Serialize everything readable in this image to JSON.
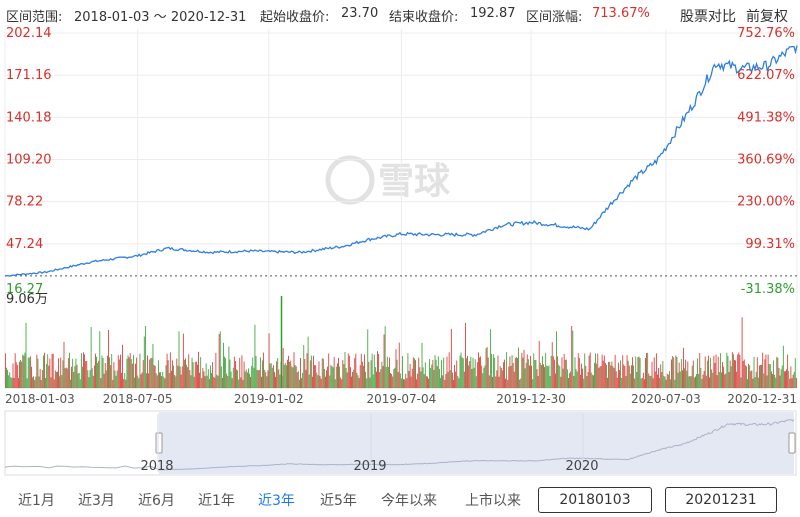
{
  "header": {
    "range_label": "区间范围:",
    "range_value": "2018-01-03 ～ 2020-12-31",
    "start_label": "起始收盘价:",
    "start_value": "23.70",
    "end_label": "结束收盘价:",
    "end_value": "192.87",
    "change_label": "区间涨幅:",
    "change_value": "713.67%",
    "compare_button": "股票对比",
    "adjust_button": "前复权"
  },
  "colors": {
    "price_line": "#2f7fe0",
    "up": "#d9302b",
    "down": "#2f9e2f",
    "nav_fill": "#e3e8f3",
    "accent": "#1e7be6"
  },
  "watermark": "雪球",
  "chart_data": {
    "type": "line",
    "ylim": [
      16.27,
      202.14
    ],
    "yticks_left": [
      "202.14",
      "171.16",
      "140.18",
      "109.20",
      "78.22",
      "47.24",
      "16.27"
    ],
    "yticks_right": [
      "752.76%",
      "622.07%",
      "491.38%",
      "360.69%",
      "230.00%",
      "99.31%",
      "-31.38%"
    ],
    "xticks": [
      "2018-01-03",
      "2018-07-05",
      "2019-01-02",
      "2019-07-04",
      "2019-12-30",
      "2020-07-03",
      "2020-12-31"
    ],
    "price_series": {
      "x": [
        "2018-01-03",
        "2018-03-01",
        "2018-05-02",
        "2018-07-05",
        "2018-08-15",
        "2018-10-15",
        "2018-12-10",
        "2019-01-02",
        "2019-02-15",
        "2019-04-15",
        "2019-05-20",
        "2019-07-04",
        "2019-08-15",
        "2019-10-15",
        "2019-11-20",
        "2019-12-30",
        "2020-02-10",
        "2020-03-20",
        "2020-04-20",
        "2020-05-20",
        "2020-06-20",
        "2020-07-03",
        "2020-08-10",
        "2020-09-10",
        "2020-10-15",
        "2020-11-20",
        "2020-12-31"
      ],
      "y": [
        23.7,
        26.5,
        34.0,
        38.5,
        44.0,
        41.0,
        42.0,
        41.5,
        41.0,
        45.5,
        50.5,
        54.5,
        54.0,
        54.0,
        61.0,
        63.0,
        60.5,
        58.0,
        78.0,
        95.0,
        108.0,
        118.0,
        150.0,
        180.0,
        176.0,
        178.0,
        192.87
      ]
    },
    "volume": {
      "max_label": "9.06万",
      "max_value": 90600,
      "unit": "万"
    }
  },
  "navigator": {
    "years": [
      "2018",
      "2019",
      "2020"
    ]
  },
  "periods": [
    "近1月",
    "近3月",
    "近6月",
    "近1年",
    "近3年",
    "近5年",
    "今年以来",
    "上市以来"
  ],
  "active_period": "近3年",
  "date_range": {
    "start": "20180103",
    "end": "20201231"
  }
}
